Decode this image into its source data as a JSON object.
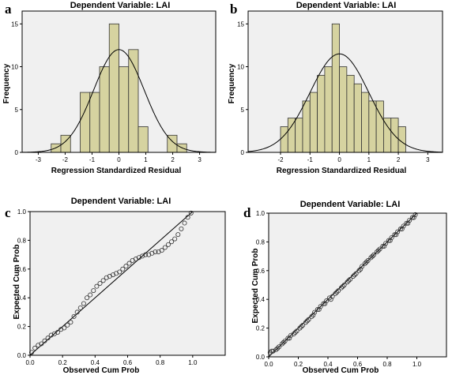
{
  "chart_data": [
    {
      "id": "a",
      "type": "bar",
      "panel_label": "a",
      "title": "Dependent Variable: LAI",
      "xlabel": "Regression Standardized Residual",
      "ylabel": "Frequency",
      "xlim": [
        -3.6,
        3.6
      ],
      "ylim": [
        0,
        16.5
      ],
      "x_ticks": [
        -3,
        -2,
        -1,
        0,
        1,
        2,
        3
      ],
      "y_ticks": [
        0,
        5,
        10,
        15
      ],
      "bin_width": 0.36,
      "bins": [
        {
          "x": -2.34,
          "value": 1
        },
        {
          "x": -1.98,
          "value": 2
        },
        {
          "x": -1.62,
          "value": 0
        },
        {
          "x": -1.26,
          "value": 7
        },
        {
          "x": -0.9,
          "value": 7
        },
        {
          "x": -0.54,
          "value": 10
        },
        {
          "x": -0.18,
          "value": 15
        },
        {
          "x": 0.18,
          "value": 10
        },
        {
          "x": 0.54,
          "value": 12
        },
        {
          "x": 0.9,
          "value": 3
        },
        {
          "x": 1.26,
          "value": 0
        },
        {
          "x": 1.62,
          "value": 0
        },
        {
          "x": 1.98,
          "value": 2
        },
        {
          "x": 2.34,
          "value": 1
        }
      ],
      "normal_curve": {
        "mean": 0,
        "sd": 0.94,
        "peak": 12
      },
      "bar_color": "#d6d3a0",
      "background": "#f0f0f0",
      "grid": false
    },
    {
      "id": "b",
      "type": "bar",
      "panel_label": "b",
      "title": "Dependent Variable: LAI",
      "xlabel": "Regression Standardized Residual",
      "ylabel": "Frequency",
      "xlim": [
        -3.1,
        3.5
      ],
      "ylim": [
        0,
        16.5
      ],
      "x_ticks": [
        -2,
        -1,
        0,
        1,
        2,
        3
      ],
      "y_ticks": [
        0,
        5,
        10,
        15
      ],
      "bin_width": 0.25,
      "bins": [
        {
          "x": -1.875,
          "value": 3
        },
        {
          "x": -1.625,
          "value": 4
        },
        {
          "x": -1.375,
          "value": 4
        },
        {
          "x": -1.125,
          "value": 6
        },
        {
          "x": -0.875,
          "value": 7
        },
        {
          "x": -0.625,
          "value": 9
        },
        {
          "x": -0.375,
          "value": 10
        },
        {
          "x": -0.125,
          "value": 15
        },
        {
          "x": 0.125,
          "value": 10
        },
        {
          "x": 0.375,
          "value": 9
        },
        {
          "x": 0.625,
          "value": 8
        },
        {
          "x": 0.875,
          "value": 7
        },
        {
          "x": 1.125,
          "value": 6
        },
        {
          "x": 1.375,
          "value": 6
        },
        {
          "x": 1.625,
          "value": 4
        },
        {
          "x": 1.875,
          "value": 4
        },
        {
          "x": 2.125,
          "value": 3
        }
      ],
      "normal_curve": {
        "mean": 0,
        "sd": 1.0,
        "peak": 11.5
      },
      "bar_color": "#d6d3a0",
      "background": "#f0f0f0",
      "grid": false
    },
    {
      "id": "c",
      "type": "scatter",
      "panel_label": "c",
      "title": "Dependent Variable: LAI",
      "xlabel": "Observed Cum Prob",
      "ylabel": "Expected Cum Prob",
      "xlim": [
        0,
        1.2
      ],
      "ylim": [
        0,
        1.0
      ],
      "x_ticks": [
        0.0,
        0.2,
        0.4,
        0.6,
        0.8,
        1.0
      ],
      "y_ticks": [
        0.0,
        0.2,
        0.4,
        0.6,
        0.8,
        1.0
      ],
      "reference_line": [
        [
          0,
          0
        ],
        [
          1,
          1
        ]
      ],
      "points": {
        "x": [
          0.01,
          0.03,
          0.05,
          0.07,
          0.09,
          0.11,
          0.13,
          0.15,
          0.17,
          0.19,
          0.21,
          0.23,
          0.25,
          0.27,
          0.29,
          0.31,
          0.33,
          0.35,
          0.37,
          0.39,
          0.41,
          0.43,
          0.45,
          0.47,
          0.49,
          0.51,
          0.53,
          0.55,
          0.57,
          0.59,
          0.61,
          0.63,
          0.65,
          0.67,
          0.69,
          0.71,
          0.73,
          0.75,
          0.77,
          0.79,
          0.81,
          0.83,
          0.85,
          0.87,
          0.89,
          0.91,
          0.93,
          0.95,
          0.97,
          0.99
        ],
        "y": [
          0.02,
          0.05,
          0.07,
          0.08,
          0.1,
          0.12,
          0.14,
          0.15,
          0.16,
          0.18,
          0.19,
          0.21,
          0.23,
          0.27,
          0.3,
          0.33,
          0.36,
          0.4,
          0.42,
          0.45,
          0.48,
          0.5,
          0.52,
          0.54,
          0.55,
          0.56,
          0.57,
          0.58,
          0.6,
          0.62,
          0.64,
          0.66,
          0.67,
          0.68,
          0.69,
          0.7,
          0.7,
          0.71,
          0.72,
          0.72,
          0.73,
          0.75,
          0.77,
          0.79,
          0.81,
          0.84,
          0.88,
          0.92,
          0.96,
          0.99
        ]
      },
      "background": "#f0f0f0",
      "grid": false
    },
    {
      "id": "d",
      "type": "scatter",
      "panel_label": "d",
      "title": "Dependent Variable: LAI",
      "xlabel": "Observed Cum Prob",
      "ylabel": "Expected Cum Prob",
      "xlim": [
        0,
        1.2
      ],
      "ylim": [
        0,
        1.0
      ],
      "x_ticks": [
        0.0,
        0.2,
        0.4,
        0.6,
        0.8,
        1.0
      ],
      "y_ticks": [
        0.0,
        0.2,
        0.4,
        0.6,
        0.8,
        1.0
      ],
      "reference_line": [
        [
          0,
          0
        ],
        [
          1,
          1
        ]
      ],
      "points": {
        "x": [
          0.01,
          0.03,
          0.05,
          0.07,
          0.09,
          0.11,
          0.13,
          0.15,
          0.17,
          0.19,
          0.21,
          0.23,
          0.25,
          0.27,
          0.29,
          0.31,
          0.33,
          0.35,
          0.37,
          0.39,
          0.41,
          0.43,
          0.45,
          0.47,
          0.49,
          0.51,
          0.53,
          0.55,
          0.57,
          0.59,
          0.61,
          0.63,
          0.65,
          0.67,
          0.69,
          0.71,
          0.73,
          0.75,
          0.77,
          0.79,
          0.81,
          0.83,
          0.85,
          0.87,
          0.89,
          0.91,
          0.93,
          0.95,
          0.97,
          0.99,
          0.02,
          0.06,
          0.1,
          0.14,
          0.18,
          0.22,
          0.26,
          0.3,
          0.34,
          0.38,
          0.42,
          0.46,
          0.5,
          0.54,
          0.58,
          0.62,
          0.66,
          0.7,
          0.74,
          0.78,
          0.82,
          0.86,
          0.9,
          0.94,
          0.98
        ],
        "y": [
          0.03,
          0.04,
          0.05,
          0.07,
          0.09,
          0.11,
          0.13,
          0.15,
          0.16,
          0.18,
          0.2,
          0.22,
          0.24,
          0.26,
          0.28,
          0.31,
          0.33,
          0.35,
          0.37,
          0.39,
          0.41,
          0.42,
          0.44,
          0.46,
          0.48,
          0.5,
          0.52,
          0.54,
          0.56,
          0.58,
          0.6,
          0.63,
          0.65,
          0.67,
          0.69,
          0.71,
          0.73,
          0.75,
          0.77,
          0.79,
          0.81,
          0.83,
          0.85,
          0.87,
          0.89,
          0.91,
          0.93,
          0.95,
          0.97,
          0.99,
          0.04,
          0.06,
          0.1,
          0.13,
          0.17,
          0.21,
          0.25,
          0.29,
          0.33,
          0.37,
          0.4,
          0.45,
          0.49,
          0.53,
          0.57,
          0.61,
          0.66,
          0.7,
          0.74,
          0.77,
          0.81,
          0.85,
          0.89,
          0.93,
          0.97
        ]
      },
      "background": "#f0f0f0",
      "grid": false
    }
  ]
}
